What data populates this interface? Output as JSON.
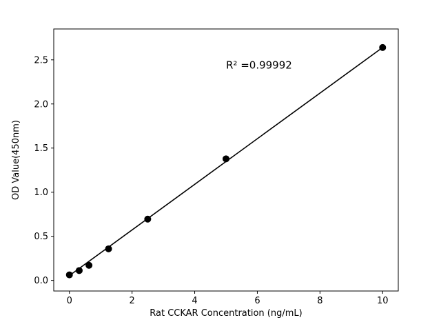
{
  "chart_data": {
    "type": "scatter",
    "title": "",
    "xlabel": "Rat CCKAR Concentration (ng/mL)",
    "ylabel": "OD Value(450nm)",
    "xlim": [
      -0.5,
      10.5
    ],
    "ylim": [
      -0.12,
      2.85
    ],
    "xticks": [
      0,
      2,
      4,
      6,
      8,
      10
    ],
    "xtick_labels": [
      "0",
      "2",
      "4",
      "6",
      "8",
      "10"
    ],
    "yticks": [
      0.0,
      0.5,
      1.0,
      1.5,
      2.0,
      2.5
    ],
    "ytick_labels": [
      "0.0",
      "0.5",
      "1.0",
      "1.5",
      "2.0",
      "2.5"
    ],
    "points": [
      [
        0,
        0.063
      ],
      [
        0.313,
        0.112
      ],
      [
        0.625,
        0.171
      ],
      [
        1.25,
        0.358
      ],
      [
        2.5,
        0.695
      ],
      [
        5,
        1.378
      ],
      [
        10,
        2.64
      ]
    ],
    "fit_line": {
      "x1": 0,
      "y1": 0.055,
      "x2": 10,
      "y2": 2.64
    },
    "annotation": {
      "text": "R² =0.99992",
      "x": 5.0,
      "y": 2.4
    },
    "marker_color": "#000000",
    "line_color": "#000000",
    "axis_color": "#000000",
    "background": "#ffffff",
    "grid": false,
    "legend": "none"
  }
}
